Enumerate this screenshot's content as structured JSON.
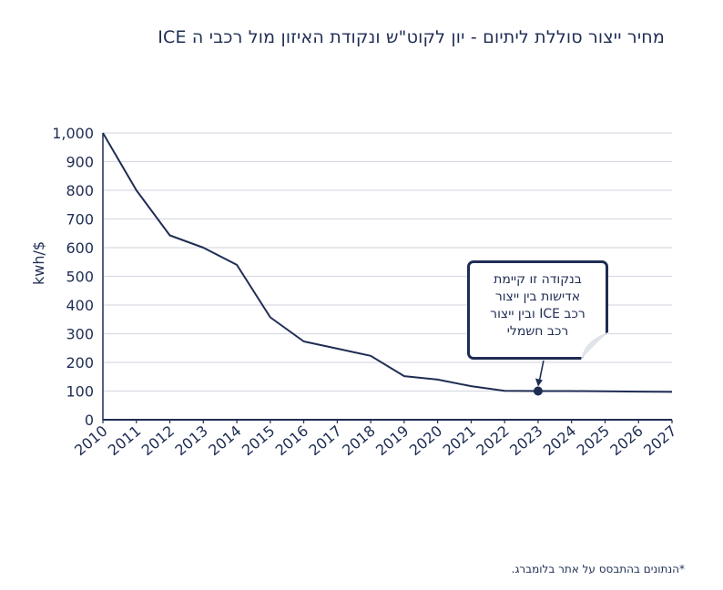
{
  "chart_data": {
    "type": "line",
    "title": "מחיר ייצור סוללת ליתיום - יון לקוט\"ש ונקודת האיזון מול רכבי ה ICE",
    "xlabel": "",
    "ylabel": "kwh/$",
    "categories": [
      "2010",
      "2011",
      "2012",
      "2013",
      "2014",
      "2015",
      "2016",
      "2017",
      "2018",
      "2019",
      "2020",
      "2021",
      "2022",
      "2023",
      "2024",
      "2025",
      "2026",
      "2027"
    ],
    "x": [
      2010,
      2011,
      2012,
      2013,
      2014,
      2015,
      2016,
      2017,
      2018,
      2019,
      2020,
      2021,
      2022,
      2023,
      2024,
      2025,
      2026,
      2027
    ],
    "series": [
      {
        "values": [
          1000,
          800,
          643,
          600,
          540,
          357,
          273,
          248,
          223,
          152,
          140,
          117,
          101,
          100,
          100,
          99,
          98,
          97
        ]
      }
    ],
    "ylim": [
      0,
      1000
    ],
    "yticks": [
      0,
      100,
      200,
      300,
      400,
      500,
      600,
      700,
      800,
      900,
      1000
    ],
    "ytick_labels": [
      "0",
      "100",
      "200",
      "300",
      "400",
      "500",
      "600",
      "700",
      "800",
      "900",
      "1,000"
    ],
    "grid": true,
    "highlight_point": {
      "x": 2023,
      "y": 100
    },
    "annotation": {
      "lines": [
        "בנקודה זו קיימת",
        "אדישות בין ייצור",
        "רכב ICE ובין ייצור",
        "רכב חשמלי"
      ]
    },
    "colors": {
      "line": "#1f2d54",
      "grid": "#d9dbe3",
      "text": "#1f2d54"
    }
  },
  "footnote": "*הנתונים בהתבסס על אתר בלומברג."
}
